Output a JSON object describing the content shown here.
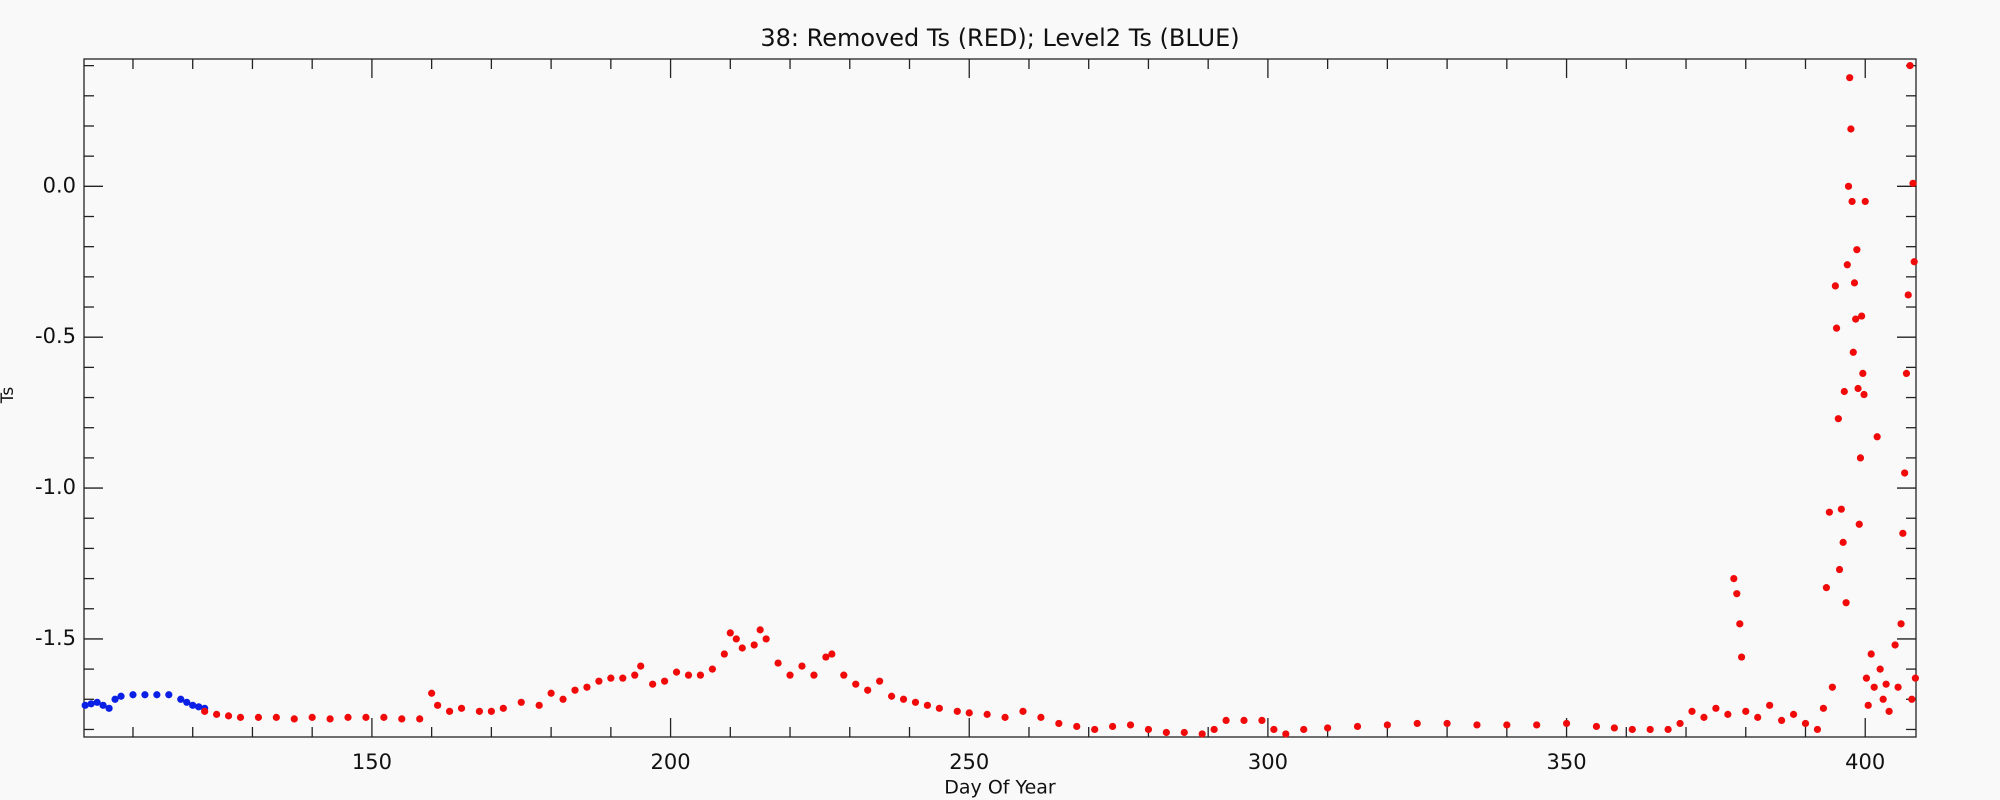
{
  "chart_data": {
    "type": "scatter",
    "title": "38: Removed Ts (RED); Level2 Ts (BLUE)",
    "x_label": "Day Of Year",
    "y_label": "Ts",
    "xlim": [
      101.8,
      408.5
    ],
    "ylim": [
      -1.825,
      0.422
    ],
    "xticks": [
      150,
      200,
      250,
      300,
      350,
      400
    ],
    "yticks": [
      {
        "value": 0,
        "label": "0.0"
      },
      -0.5,
      {
        "value": -1,
        "label": "-1.0"
      },
      -1.5
    ],
    "xminorticks": [
      110,
      120,
      130,
      140,
      160,
      170,
      180,
      190,
      210,
      220,
      230,
      240,
      260,
      270,
      280,
      290,
      310,
      320,
      330,
      340,
      360,
      370,
      380,
      390
    ],
    "yminorticks": [
      0.4,
      0.3,
      0.2,
      0.1,
      -0.1,
      -0.2,
      -0.3,
      -0.4,
      -0.6,
      -0.7,
      -0.8,
      -0.9,
      -1.1,
      -1.2,
      -1.3,
      -1.4,
      -1.6,
      -1.7,
      -1.8
    ],
    "series": [
      {
        "color": "#0a1fe6",
        "x": [
          102,
          103,
          104,
          105,
          106,
          107,
          108,
          110,
          112,
          114,
          116,
          118,
          119,
          120,
          121,
          122
        ],
        "values": [
          -1.72,
          -1.715,
          -1.71,
          -1.72,
          -1.73,
          -1.7,
          -1.69,
          -1.685,
          -1.685,
          -1.685,
          -1.685,
          -1.7,
          -1.71,
          -1.72,
          -1.725,
          -1.73
        ]
      },
      {
        "color": "#f00a0a",
        "x": [
          122,
          124,
          126,
          128,
          131,
          134,
          137,
          140,
          143,
          146,
          149,
          152,
          155,
          158,
          160,
          161,
          163,
          165,
          168,
          170,
          172,
          175,
          178,
          180,
          182,
          184,
          186,
          188,
          190,
          192,
          194,
          195,
          197,
          199,
          201,
          203,
          205,
          207,
          209,
          210,
          211,
          212,
          214,
          215,
          216,
          218,
          220,
          222,
          224,
          226,
          227,
          229,
          231,
          233,
          235,
          237,
          239,
          241,
          243,
          245,
          248,
          250,
          253,
          256,
          259,
          262,
          265,
          268,
          271,
          274,
          277,
          280,
          283,
          286,
          289,
          291,
          293,
          296,
          299,
          301,
          303,
          306,
          310,
          315,
          320,
          325,
          330,
          335,
          340,
          345,
          350,
          355,
          358,
          361,
          364,
          367,
          369,
          371,
          373,
          375,
          377,
          378,
          378.5,
          379,
          379.3,
          380,
          382,
          384,
          386,
          388,
          390,
          392,
          393,
          393.5,
          394,
          394.5,
          395,
          395.2,
          395.5,
          395.7,
          396,
          396.3,
          396.5,
          396.8,
          397,
          397.2,
          397.4,
          397.6,
          397.8,
          398,
          398.2,
          398.4,
          398.6,
          398.8,
          399,
          399.2,
          399.4,
          399.6,
          399.8,
          400,
          400.2,
          400.5,
          401,
          401.5,
          402,
          402.5,
          403,
          403.5,
          404,
          405,
          405.5,
          406,
          406.3,
          406.6,
          406.9,
          407.2,
          407.5,
          407.8,
          408,
          408.2,
          408.4
        ],
        "values": [
          -1.74,
          -1.75,
          -1.755,
          -1.76,
          -1.76,
          -1.76,
          -1.765,
          -1.76,
          -1.765,
          -1.76,
          -1.76,
          -1.76,
          -1.765,
          -1.765,
          -1.68,
          -1.72,
          -1.74,
          -1.73,
          -1.74,
          -1.74,
          -1.73,
          -1.71,
          -1.72,
          -1.68,
          -1.7,
          -1.67,
          -1.66,
          -1.64,
          -1.63,
          -1.63,
          -1.62,
          -1.59,
          -1.65,
          -1.64,
          -1.61,
          -1.62,
          -1.62,
          -1.6,
          -1.55,
          -1.48,
          -1.5,
          -1.53,
          -1.52,
          -1.47,
          -1.5,
          -1.58,
          -1.62,
          -1.59,
          -1.62,
          -1.56,
          -1.55,
          -1.62,
          -1.65,
          -1.67,
          -1.64,
          -1.69,
          -1.7,
          -1.71,
          -1.72,
          -1.73,
          -1.74,
          -1.745,
          -1.75,
          -1.76,
          -1.74,
          -1.76,
          -1.78,
          -1.79,
          -1.8,
          -1.79,
          -1.785,
          -1.8,
          -1.81,
          -1.81,
          -1.815,
          -1.8,
          -1.77,
          -1.77,
          -1.77,
          -1.8,
          -1.815,
          -1.8,
          -1.795,
          -1.79,
          -1.785,
          -1.78,
          -1.78,
          -1.785,
          -1.785,
          -1.785,
          -1.78,
          -1.79,
          -1.795,
          -1.8,
          -1.8,
          -1.8,
          -1.78,
          -1.74,
          -1.76,
          -1.73,
          -1.75,
          -1.3,
          -1.35,
          -1.45,
          -1.56,
          -1.74,
          -1.76,
          -1.72,
          -1.77,
          -1.75,
          -1.78,
          -1.8,
          -1.73,
          -1.33,
          -1.08,
          -1.66,
          -0.33,
          -0.47,
          -0.77,
          -1.27,
          -1.07,
          -1.18,
          -0.68,
          -1.38,
          -0.26,
          0.0,
          0.36,
          0.19,
          -0.05,
          -0.55,
          -0.32,
          -0.44,
          -0.21,
          -0.67,
          -1.12,
          -0.9,
          -0.43,
          -0.62,
          -0.69,
          -0.05,
          -1.63,
          -1.72,
          -1.55,
          -1.66,
          -0.83,
          -1.6,
          -1.7,
          -1.65,
          -1.74,
          -1.52,
          -1.66,
          -1.45,
          -1.15,
          -0.95,
          -0.62,
          -0.36,
          0.4,
          -1.7,
          0.01,
          -0.25,
          -1.63
        ]
      }
    ]
  }
}
